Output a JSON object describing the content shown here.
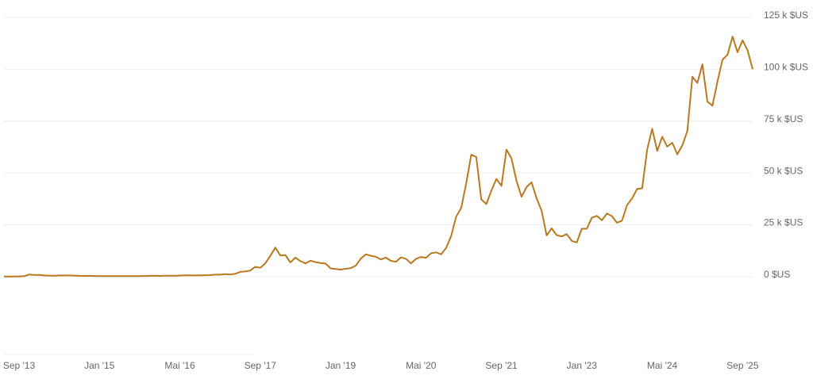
{
  "chart_data": {
    "type": "line",
    "color": "#b8791f",
    "grid": true,
    "x": [
      "2013-06",
      "2013-07",
      "2013-08",
      "2013-09",
      "2013-10",
      "2013-11",
      "2013-12",
      "2014-01",
      "2014-02",
      "2014-03",
      "2014-04",
      "2014-05",
      "2014-06",
      "2014-07",
      "2014-08",
      "2014-09",
      "2014-10",
      "2014-11",
      "2014-12",
      "2015-01",
      "2015-02",
      "2015-03",
      "2015-04",
      "2015-05",
      "2015-06",
      "2015-07",
      "2015-08",
      "2015-09",
      "2015-10",
      "2015-11",
      "2015-12",
      "2016-01",
      "2016-02",
      "2016-03",
      "2016-04",
      "2016-05",
      "2016-06",
      "2016-07",
      "2016-08",
      "2016-09",
      "2016-10",
      "2016-11",
      "2016-12",
      "2017-01",
      "2017-02",
      "2017-03",
      "2017-04",
      "2017-05",
      "2017-06",
      "2017-07",
      "2017-08",
      "2017-09",
      "2017-10",
      "2017-11",
      "2017-12",
      "2018-01",
      "2018-02",
      "2018-03",
      "2018-04",
      "2018-05",
      "2018-06",
      "2018-07",
      "2018-08",
      "2018-09",
      "2018-10",
      "2018-11",
      "2018-12",
      "2019-01",
      "2019-02",
      "2019-03",
      "2019-04",
      "2019-05",
      "2019-06",
      "2019-07",
      "2019-08",
      "2019-09",
      "2019-10",
      "2019-11",
      "2019-12",
      "2020-01",
      "2020-02",
      "2020-03",
      "2020-04",
      "2020-05",
      "2020-06",
      "2020-07",
      "2020-08",
      "2020-09",
      "2020-10",
      "2020-11",
      "2020-12",
      "2021-01",
      "2021-02",
      "2021-03",
      "2021-04",
      "2021-05",
      "2021-06",
      "2021-07",
      "2021-08",
      "2021-09",
      "2021-10",
      "2021-11",
      "2021-12",
      "2022-01",
      "2022-02",
      "2022-03",
      "2022-04",
      "2022-05",
      "2022-06",
      "2022-07",
      "2022-08",
      "2022-09",
      "2022-10",
      "2022-11",
      "2022-12",
      "2023-01",
      "2023-02",
      "2023-03",
      "2023-04",
      "2023-05",
      "2023-06",
      "2023-07",
      "2023-08",
      "2023-09",
      "2023-10",
      "2023-11",
      "2023-12",
      "2024-01",
      "2024-02",
      "2024-03",
      "2024-04",
      "2024-05",
      "2024-06",
      "2024-07",
      "2024-08",
      "2024-09",
      "2024-10",
      "2024-11",
      "2024-12",
      "2025-01",
      "2025-02",
      "2025-03",
      "2025-04",
      "2025-05",
      "2025-06",
      "2025-07",
      "2025-08",
      "2025-09",
      "2025-10",
      "2025-11"
    ],
    "values": [
      0.1,
      0.1,
      0.1,
      0.13,
      0.2,
      1.0,
      0.8,
      0.8,
      0.6,
      0.5,
      0.45,
      0.6,
      0.6,
      0.6,
      0.5,
      0.4,
      0.35,
      0.38,
      0.32,
      0.22,
      0.25,
      0.25,
      0.24,
      0.23,
      0.26,
      0.28,
      0.23,
      0.24,
      0.31,
      0.38,
      0.43,
      0.37,
      0.43,
      0.42,
      0.45,
      0.53,
      0.67,
      0.62,
      0.57,
      0.61,
      0.7,
      0.74,
      0.96,
      0.97,
      1.19,
      1.07,
      1.35,
      2.3,
      2.5,
      2.9,
      4.7,
      4.3,
      6.4,
      10.0,
      14.0,
      10.2,
      10.4,
      6.9,
      9.2,
      7.5,
      6.4,
      7.7,
      7.0,
      6.6,
      6.3,
      4.0,
      3.7,
      3.4,
      3.8,
      4.1,
      5.3,
      8.6,
      10.8,
      10.1,
      9.6,
      8.3,
      9.2,
      7.6,
      7.2,
      9.3,
      8.6,
      6.4,
      8.6,
      9.5,
      9.1,
      11.3,
      11.7,
      10.8,
      13.8,
      19.7,
      29.0,
      33.1,
      45.2,
      58.8,
      57.7,
      37.3,
      35.0,
      41.5,
      47.1,
      43.8,
      61.3,
      57.0,
      46.3,
      38.5,
      43.2,
      45.5,
      37.7,
      31.8,
      19.9,
      23.3,
      20.0,
      19.4,
      20.5,
      17.2,
      16.5,
      23.1,
      23.1,
      28.5,
      29.3,
      27.2,
      30.5,
      29.2,
      26.0,
      27.0,
      34.5,
      37.7,
      42.3,
      42.6,
      61.2,
      71.3,
      60.6,
      67.5,
      62.7,
      64.6,
      59.0,
      63.3,
      70.2,
      96.4,
      93.4,
      102.4,
      84.4,
      82.5,
      94.2,
      104.6,
      107.1,
      115.8,
      108.2,
      114.0,
      109.0,
      100
    ],
    "xlim": [
      "2013-06",
      "2025-11"
    ],
    "xticks": [
      {
        "value": "2013-09",
        "label": "Sep '13"
      },
      {
        "value": "2015-01",
        "label": "Jan '15"
      },
      {
        "value": "2016-05",
        "label": "Mai '16"
      },
      {
        "value": "2017-09",
        "label": "Sep '17"
      },
      {
        "value": "2019-01",
        "label": "Jan '19"
      },
      {
        "value": "2020-05",
        "label": "Mai '20"
      },
      {
        "value": "2021-09",
        "label": "Sep '21"
      },
      {
        "value": "2023-01",
        "label": "Jan '23"
      },
      {
        "value": "2024-05",
        "label": "Mai '24"
      },
      {
        "value": "2025-09",
        "label": "Sep '25"
      }
    ],
    "ylim": [
      -37.5,
      125
    ],
    "yticks": [
      {
        "value": 0,
        "label": "0 $US"
      },
      {
        "value": 25,
        "label": "25 k $US"
      },
      {
        "value": 50,
        "label": "50 k $US"
      },
      {
        "value": 75,
        "label": "75 k $US"
      },
      {
        "value": 100,
        "label": "100 k $US"
      },
      {
        "value": 125,
        "label": "125 k $US"
      }
    ]
  }
}
